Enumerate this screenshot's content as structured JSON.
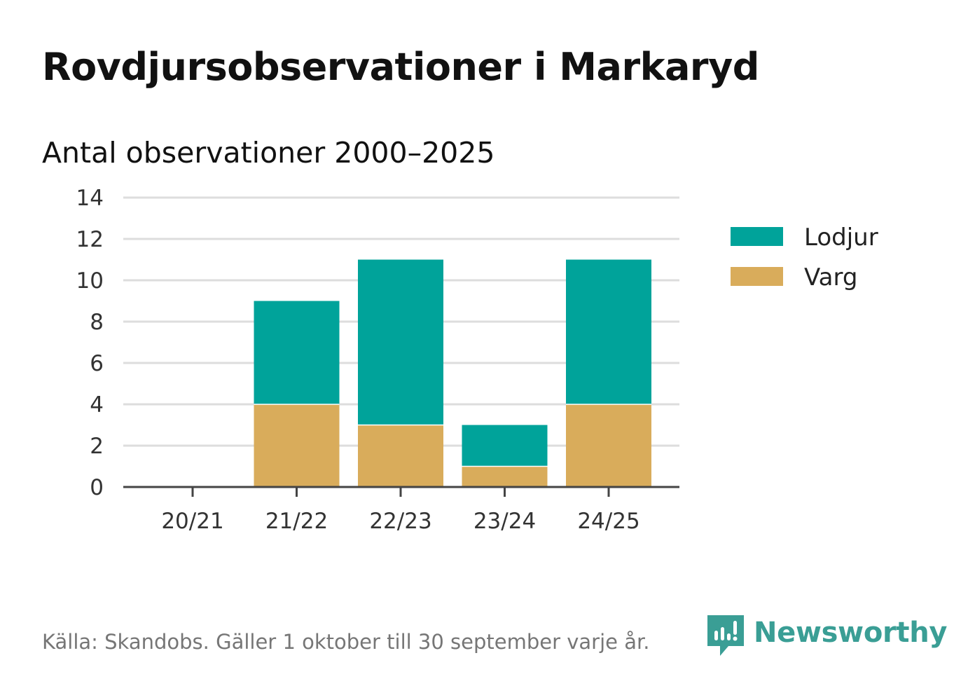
{
  "title": "Rovdjursobservationer i Markaryd",
  "subtitle": "Antal observationer 2000–2025",
  "footer": "Källa: Skandobs. Gäller 1 oktober till 30 september varje år.",
  "brand": "Newsworthy",
  "colors": {
    "lodjur": "#00a39a",
    "varg": "#d9ac5b",
    "grid": "#dddddd",
    "axis": "#444444",
    "brand": "#3a9e95"
  },
  "chart_data": {
    "type": "bar",
    "stacked": true,
    "categories": [
      "20/21",
      "21/22",
      "22/23",
      "23/24",
      "24/25"
    ],
    "series": [
      {
        "name": "Varg",
        "values": [
          0,
          4,
          3,
          1,
          4
        ],
        "color": "#d9ac5b"
      },
      {
        "name": "Lodjur",
        "values": [
          0,
          5,
          8,
          2,
          7
        ],
        "color": "#00a39a"
      }
    ],
    "legend": [
      "Lodjur",
      "Varg"
    ],
    "legend_position": "right",
    "ylim": [
      0,
      14
    ],
    "yticks": [
      0,
      2,
      4,
      6,
      8,
      10,
      12,
      14
    ],
    "grid": true,
    "xlabel": "",
    "ylabel": ""
  }
}
